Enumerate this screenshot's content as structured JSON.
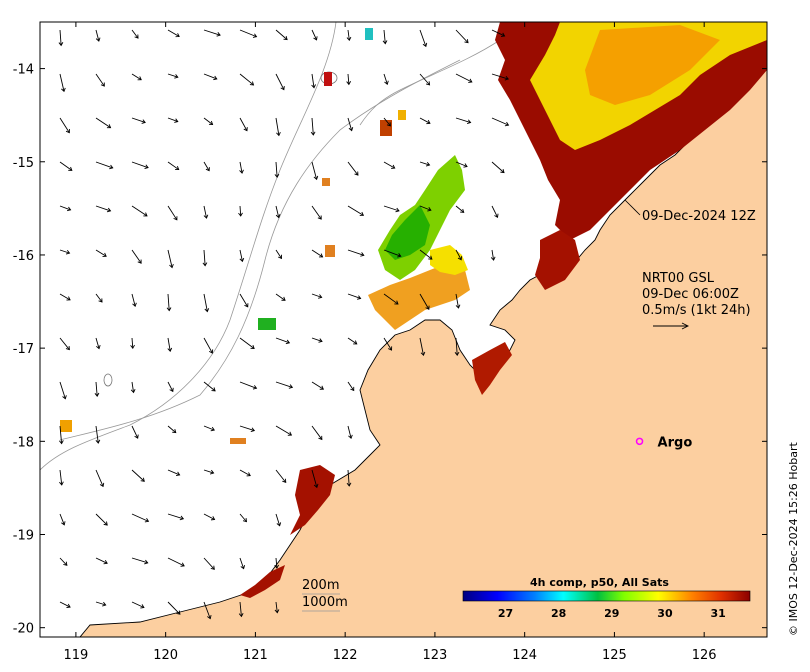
{
  "map": {
    "lon_range": [
      118.6,
      126.7
    ],
    "lat_range": [
      -20.1,
      -13.5
    ],
    "lon_ticks": [
      119,
      120,
      121,
      122,
      123,
      124,
      125,
      126
    ],
    "lat_ticks": [
      -14,
      -15,
      -16,
      -17,
      -18,
      -19,
      -20
    ],
    "lon_tick_labels": [
      "119",
      "120",
      "121",
      "122",
      "123",
      "124",
      "125",
      "126"
    ],
    "lat_tick_labels": [
      "-14",
      "-15",
      "-16",
      "-17",
      "-18",
      "-19",
      "-20"
    ],
    "colors": {
      "land": "#fccfa0",
      "ocean": "#ffffff",
      "coast": "#000000",
      "isobath": "#999999",
      "argo": "#ff00ff"
    }
  },
  "annotations": {
    "timestamp": "09-Dec-2024 12Z",
    "current_source": "NRT00 GSL",
    "current_time": "09-Dec 06:00Z",
    "scale_note": "0.5m/s (1kt 24h)",
    "argo_label": "Argo",
    "isobath_200": "200m",
    "isobath_1000": "1000m",
    "credit": "© IMOS 12-Dec-2024 15:26 Hobart"
  },
  "argo": {
    "lon": 125.28,
    "lat": -18.0
  },
  "colorbar": {
    "title": "4h comp, p50, All Sats",
    "min": 26.2,
    "max": 31.6,
    "tick_values": [
      27,
      28,
      29,
      30,
      31
    ],
    "tick_labels": [
      "27",
      "28",
      "29",
      "30",
      "31"
    ],
    "stops": [
      "#00007f",
      "#0000ff",
      "#0080ff",
      "#00ffff",
      "#00c040",
      "#7fff00",
      "#ffff00",
      "#ff8000",
      "#e03000",
      "#8b0000"
    ]
  }
}
